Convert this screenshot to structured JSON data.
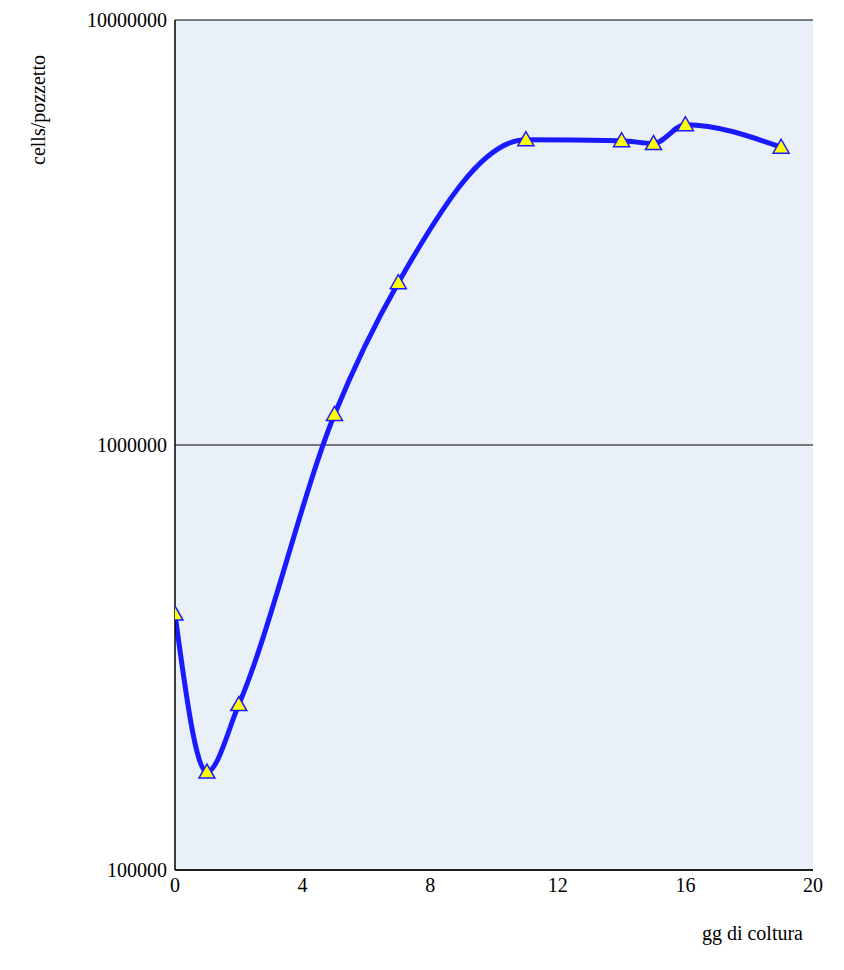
{
  "chart_data": {
    "type": "line",
    "x_label": "gg di coltura",
    "y_label": "cells/pozzetto",
    "x": [
      0,
      1,
      2,
      5,
      7,
      11,
      14,
      15,
      16,
      19
    ],
    "values": [
      400000,
      170000,
      245000,
      1180000,
      2410000,
      5230000,
      5200000,
      5120000,
      5670000,
      5020000
    ],
    "color": "#1a1aff",
    "marker": "triangle",
    "xlim": [
      0,
      20
    ],
    "xticks": [
      0,
      4,
      8,
      12,
      16,
      20
    ],
    "ylim": [
      100000,
      10000000
    ],
    "yticks": [
      100000,
      1000000,
      10000000
    ],
    "log": "y",
    "grid": true
  }
}
